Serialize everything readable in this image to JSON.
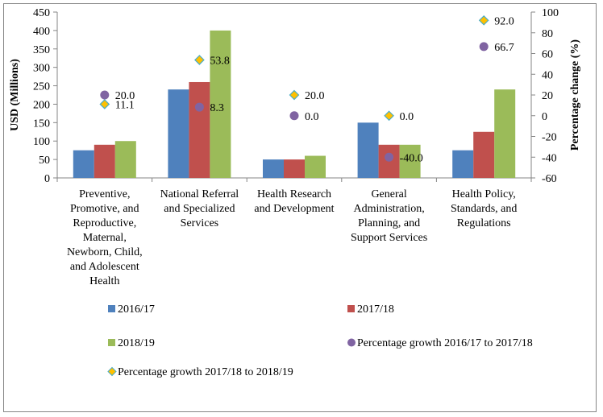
{
  "chart_data": {
    "type": "bar",
    "title": "",
    "xlabel": "",
    "ylabel": "USD (Millions)",
    "y2label": "Percentage change (%)",
    "ylim": [
      0,
      450
    ],
    "yticks": [
      0,
      50,
      100,
      150,
      200,
      250,
      300,
      350,
      400,
      450
    ],
    "y2lim": [
      -60,
      100
    ],
    "y2ticks": [
      -60,
      -40,
      -20,
      0,
      20,
      40,
      60,
      80,
      100
    ],
    "grid": false,
    "legend_position": "bottom",
    "categories": [
      [
        "Preventive,",
        "Promotive, and",
        "Reproductive,",
        "Maternal,",
        "Newborn, Child,",
        "and Adolescent",
        "Health"
      ],
      [
        "National Referral",
        "and Specialized",
        "Services"
      ],
      [
        "Health Research",
        "and Development"
      ],
      [
        "General",
        "Administration,",
        "Planning, and",
        "Support Services"
      ],
      [
        "Health Policy,",
        "Standards, and",
        "Regulations"
      ]
    ],
    "series": [
      {
        "name": "2016/17",
        "kind": "bar",
        "axis": "left",
        "color": "#4F81BD",
        "values": [
          75,
          240,
          50,
          150,
          75
        ]
      },
      {
        "name": "2017/18",
        "kind": "bar",
        "axis": "left",
        "color": "#C0504D",
        "values": [
          90,
          260,
          50,
          90,
          125
        ]
      },
      {
        "name": "2018/19",
        "kind": "bar",
        "axis": "left",
        "color": "#9BBB59",
        "values": [
          100,
          400,
          60,
          90,
          240
        ]
      },
      {
        "name": "Percentage growth 2016/17 to 2017/18",
        "kind": "circle",
        "axis": "right",
        "color": "#8064A2",
        "values": [
          20.0,
          8.3,
          0.0,
          -40.0,
          66.7
        ],
        "labels": [
          "20.0",
          "8.3",
          "0.0",
          "-40.0",
          "66.7"
        ]
      },
      {
        "name": "Percentage growth 2017/18 to 2018/19",
        "kind": "diamond",
        "axis": "right",
        "color": "#FFC000",
        "stroke": "#4BACC6",
        "values": [
          11.1,
          53.8,
          20.0,
          0.0,
          92.0
        ],
        "labels": [
          "11.1",
          "53.8",
          "20.0",
          "0.0",
          "92.0"
        ]
      }
    ]
  }
}
